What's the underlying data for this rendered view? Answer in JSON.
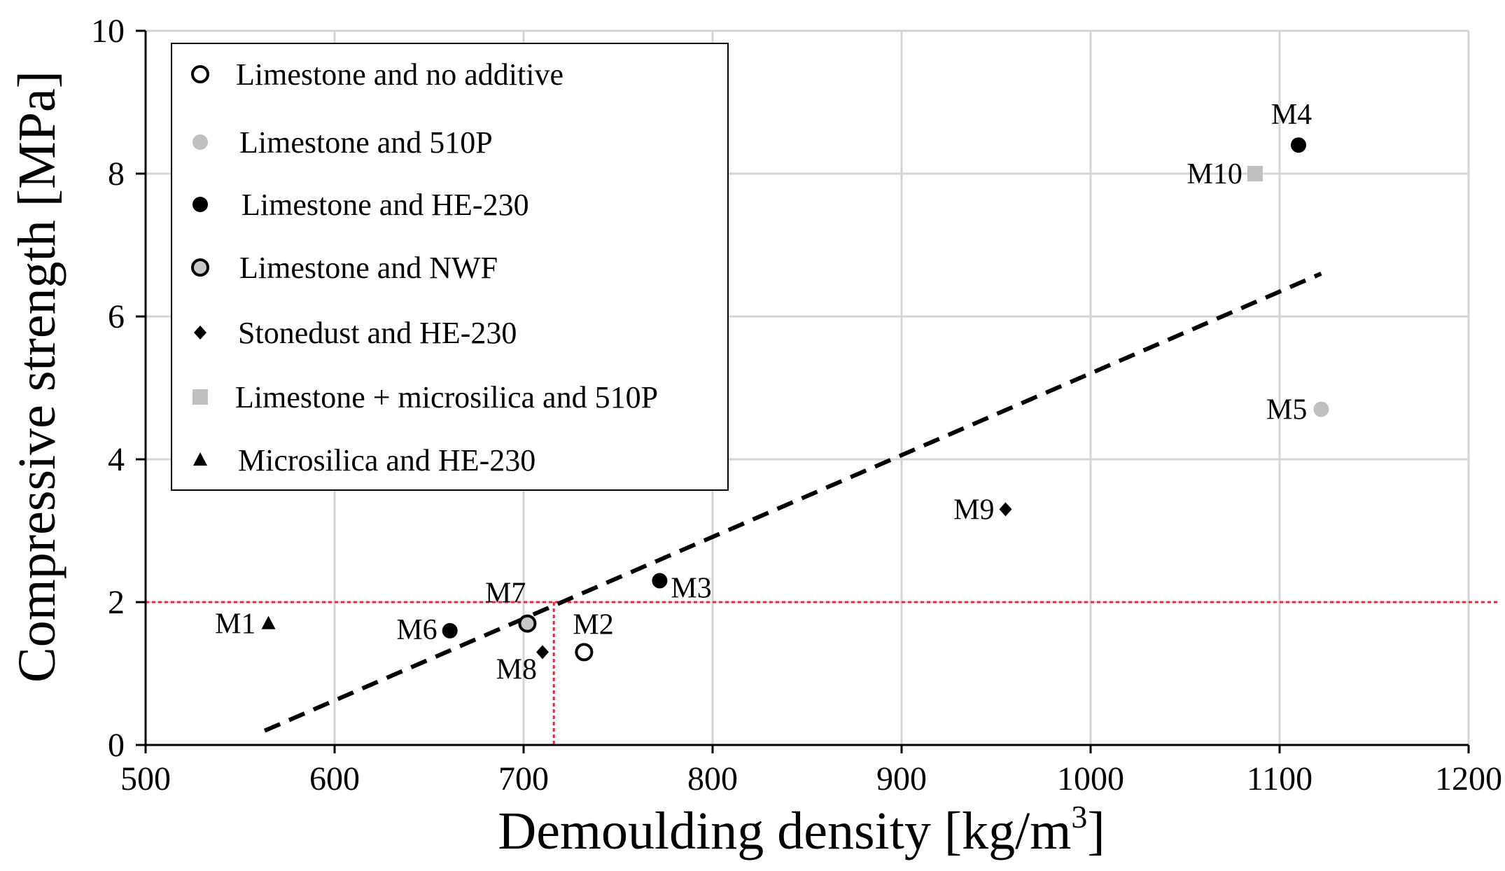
{
  "chart_data": {
    "type": "scatter",
    "title": "",
    "xlabel": "Demoulding density [kg/m",
    "xlabel_sup": "3",
    "xlabel_close": "]",
    "ylabel": "Compressive strength [MPa]",
    "xlim": [
      500,
      1200
    ],
    "ylim": [
      0,
      10
    ],
    "xticks": [
      500,
      600,
      700,
      800,
      900,
      1000,
      1100,
      1200
    ],
    "yticks": [
      0,
      2,
      4,
      6,
      8,
      10
    ],
    "grid": true,
    "legend_position": "top-left",
    "series": [
      {
        "name": "Limestone and no additive",
        "marker": "circle-open",
        "color": "#000000",
        "points": [
          {
            "label": "M2",
            "x": 732,
            "y": 1.3
          }
        ]
      },
      {
        "name": "Limestone and 510P",
        "marker": "circle",
        "color": "#bfbfbf",
        "points": [
          {
            "label": "M5",
            "x": 1122,
            "y": 4.7
          }
        ]
      },
      {
        "name": "Limestone and HE-230",
        "marker": "circle",
        "color": "#000000",
        "points": [
          {
            "label": "M4",
            "x": 1110,
            "y": 8.4
          },
          {
            "label": "M3",
            "x": 772,
            "y": 2.3
          },
          {
            "label": "M6",
            "x": 661,
            "y": 1.6
          }
        ]
      },
      {
        "name": "Limestone and NWF",
        "marker": "circle-grey",
        "color": "#c8c8c8",
        "points": [
          {
            "label": "M7",
            "x": 702,
            "y": 1.7
          }
        ]
      },
      {
        "name": "Stonedust and HE-230",
        "marker": "diamond",
        "color": "#000000",
        "points": [
          {
            "label": "M9",
            "x": 955,
            "y": 3.3
          },
          {
            "label": "M8",
            "x": 710,
            "y": 1.3
          }
        ]
      },
      {
        "name": "Limestone + microsilica and 510P",
        "marker": "square",
        "color": "#bfbfbf",
        "points": [
          {
            "label": "M10",
            "x": 1087,
            "y": 8.0
          }
        ]
      },
      {
        "name": "Microsilica and HE-230",
        "marker": "triangle",
        "color": "#000000",
        "points": [
          {
            "label": "M1",
            "x": 565,
            "y": 1.7
          }
        ]
      }
    ],
    "trendline": {
      "style": "dashed",
      "color": "#000000",
      "x": [
        563,
        1122
      ],
      "y": [
        0.2,
        6.6
      ]
    },
    "reference_lines": {
      "color": "#e8273f",
      "style": "dotted",
      "horizontal_y": 2.0,
      "vertical_x": 716
    }
  }
}
